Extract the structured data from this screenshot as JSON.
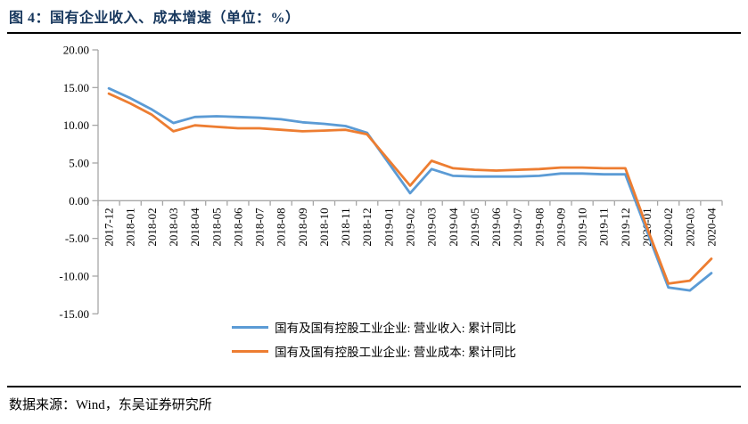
{
  "header": {
    "title": "图 4：国有企业收入、成本增速（单位：%）"
  },
  "footer": {
    "source": "数据来源：Wind，东吴证券研究所"
  },
  "chart_data": {
    "type": "line",
    "title": "国有企业收入、成本增速（单位：%）",
    "xlabel": "",
    "ylabel": "",
    "ylim": [
      -15,
      20
    ],
    "ytick_step": 5,
    "ytick_labels": [
      "20.00",
      "15.00",
      "10.00",
      "5.00",
      "0.00",
      "-5.00",
      "-10.00",
      "-15.00"
    ],
    "grid": false,
    "legend_position": "bottom",
    "axis_color": "#a6a6a6",
    "label_color": "#000000",
    "categories": [
      "2017-12",
      "2018-01",
      "2018-02",
      "2018-03",
      "2018-04",
      "2018-05",
      "2018-06",
      "2018-07",
      "2018-08",
      "2018-09",
      "2018-10",
      "2018-11",
      "2018-12",
      "2019-01",
      "2019-02",
      "2019-03",
      "2019-04",
      "2019-05",
      "2019-06",
      "2019-07",
      "2019-08",
      "2019-09",
      "2019-10",
      "2019-11",
      "2019-12",
      "2020-01",
      "2020-02",
      "2020-03",
      "2020-04"
    ],
    "series": [
      {
        "name": "国有及国有控股工业企业: 营业收入: 累计同比",
        "color": "#5b9bd5",
        "values": [
          14.9,
          13.6,
          12.1,
          10.3,
          11.1,
          11.2,
          11.1,
          11.0,
          10.8,
          10.4,
          10.2,
          9.9,
          9.0,
          5.0,
          1.0,
          4.2,
          3.3,
          3.2,
          3.2,
          3.2,
          3.3,
          3.6,
          3.6,
          3.5,
          3.5,
          -4.0,
          -11.5,
          -11.9,
          -9.6
        ]
      },
      {
        "name": "国有及国有控股工业企业: 营业成本: 累计同比",
        "color": "#ed7d31",
        "values": [
          14.2,
          12.9,
          11.4,
          9.2,
          10.0,
          9.8,
          9.6,
          9.6,
          9.4,
          9.2,
          9.3,
          9.4,
          8.8,
          5.4,
          2.0,
          5.3,
          4.3,
          4.1,
          4.0,
          4.1,
          4.2,
          4.4,
          4.4,
          4.3,
          4.3,
          -3.5,
          -11.0,
          -10.6,
          -7.7
        ]
      }
    ]
  }
}
